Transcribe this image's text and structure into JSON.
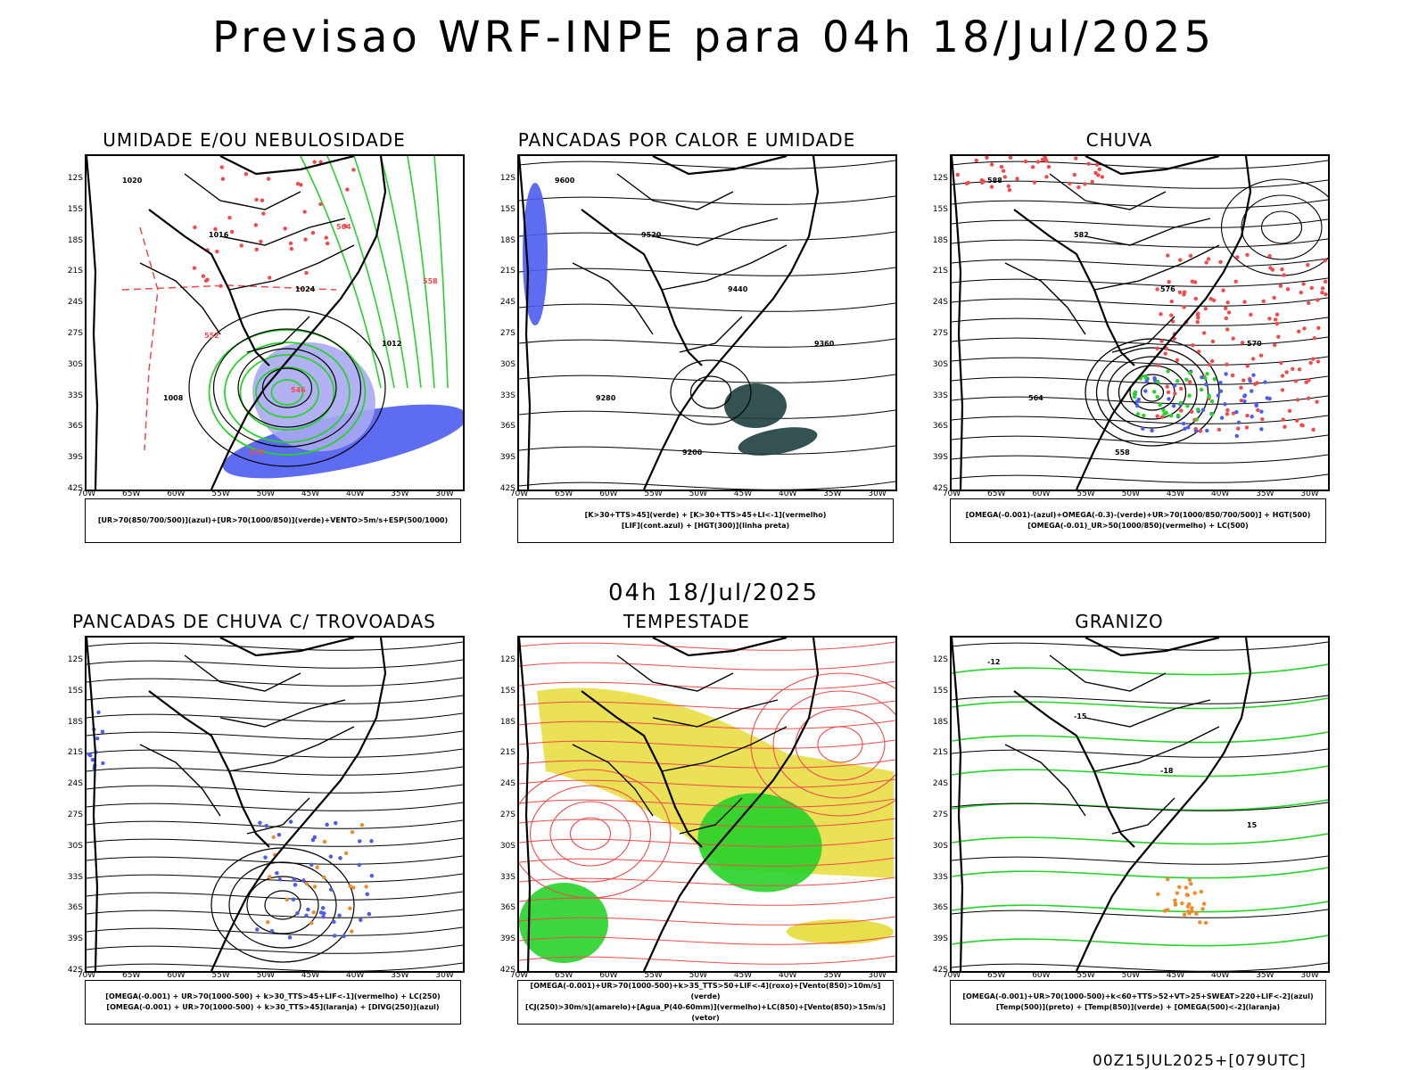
{
  "header": {
    "title": "Previsao WRF-INPE  para 04h 18/Jul/2025"
  },
  "mid_title": "04h 18/Jul/2025",
  "footer": "00Z15JUL2025+[079UTC]",
  "axes": {
    "lat_labels": [
      "12S",
      "15S",
      "18S",
      "21S",
      "24S",
      "27S",
      "30S",
      "33S",
      "36S",
      "39S",
      "42S"
    ],
    "lon_labels": [
      "70W",
      "65W",
      "60W",
      "55W",
      "50W",
      "45W",
      "40W",
      "35W",
      "30W"
    ]
  },
  "colors": {
    "blue": "#4b5cf0",
    "light_blue": "#a8a8f2",
    "green": "#27d22a",
    "red": "#f24a4a",
    "orange": "#f08a2a",
    "yellow": "#e6dc3a",
    "dark_teal": "#1f3f3f"
  },
  "panels": [
    {
      "title": "UMIDADE E/OU NEBULOSIDADE",
      "legend": [
        "[UR>70(850/700/500)](azul)+[UR>70(1000/850)](verde)+VENTO>5m/s+ESP(500/1000)"
      ],
      "labels": [
        "1020",
        "1016",
        "1024",
        "1012",
        "1008",
        "570",
        "564",
        "558",
        "552",
        "546"
      ]
    },
    {
      "title": "PANCADAS POR CALOR E UMIDADE",
      "legend": [
        "[K>30+TTS>45](verde) + [K>30+TTS>45+LI<-1](vermelho)",
        "[LIF](cont.azul) + [HGT(300)](linha preta)"
      ],
      "labels": [
        "9600",
        "9520",
        "9440",
        "9360",
        "9280",
        "9200"
      ]
    },
    {
      "title": "CHUVA",
      "legend": [
        "[OMEGA(-0.001)-(azul)+OMEGA(-0.3)-(verde)+UR>70(1000/850/700/500)] + HGT(500)",
        "[OMEGA(-0.01)_UR>50(1000/850)(vermelho) + LC(500)"
      ],
      "labels": [
        "588",
        "582",
        "576",
        "570",
        "564",
        "558"
      ]
    },
    {
      "title": "PANCADAS DE CHUVA C/ TROVOADAS",
      "legend": [
        "[OMEGA(-0.001) + UR>70(1000-500) + k>30_TTS>45+LIF<-1](vermelho) + LC(250)",
        "[OMEGA(-0.001) + UR>70(1000-500) + k>30_TTS>45](laranja) + [DIVG(250)](azul)"
      ],
      "labels": []
    },
    {
      "title": "TEMPESTADE",
      "legend": [
        "[OMEGA(-0.001)+UR>70(1000-500)+k>35_TTS>50+LIF<-4](roxo)+[Vento(850)>10m/s](verde)",
        "[CJ(250)>30m/s](amarelo)+[Agua_P(40-60mm)](vermelho)+LC(850)+[Vento(850)>15m/s](vetor)"
      ],
      "labels": []
    },
    {
      "title": "GRANIZO",
      "legend": [
        "[OMEGA(-0.001)+UR>70(1000-500)+k<60+TTS>52+VT>25+SWEAT>220+LIF<-2](azul)",
        "[Temp(500)](preto) + [Temp(850)](verde) + [OMEGA(500)<-2](laranja)"
      ],
      "labels": [
        "-12",
        "-15",
        "-18",
        "15"
      ]
    }
  ]
}
